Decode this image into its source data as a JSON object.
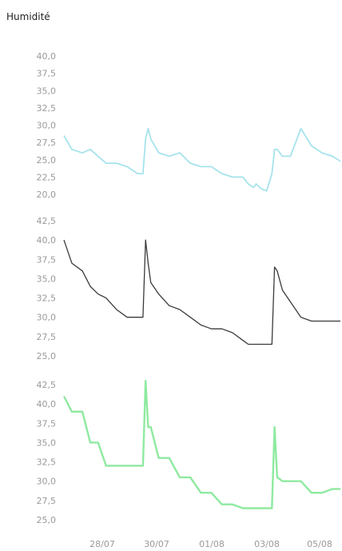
{
  "header": {
    "title": "Humidité"
  },
  "colors": {
    "series1": "#a6e3ec",
    "series2": "#3a3a3a",
    "series3": "#8eeaa0",
    "ticks": "#9a9a9a"
  },
  "chart_data": [
    {
      "type": "line",
      "ylim": [
        20,
        40
      ],
      "y_ticks": [
        "40,0",
        "37,5",
        "35,0",
        "32,5",
        "30,0",
        "27,5",
        "25,0",
        "22,5",
        "20,0"
      ],
      "grid": false,
      "x": [
        0,
        0.3,
        0.7,
        1,
        1.3,
        1.6,
        2,
        2.4,
        2.8,
        3,
        3.1,
        3.2,
        3.3,
        3.6,
        4,
        4.4,
        4.8,
        5.2,
        5.6,
        6,
        6.4,
        6.8,
        7,
        7.2,
        7.3,
        7.5,
        7.7,
        7.9,
        8,
        8.1,
        8.3,
        8.6,
        9,
        9.4,
        9.8,
        10.2,
        10.5
      ],
      "values": [
        28.5,
        26.5,
        26,
        26.5,
        25.5,
        24.5,
        24.5,
        24,
        23,
        23,
        28,
        29.5,
        28,
        26,
        25.5,
        26,
        24.5,
        24,
        24,
        23,
        22.5,
        22.5,
        21.5,
        21,
        21.5,
        20.8,
        20.5,
        23,
        26.5,
        26.5,
        25.5,
        25.5,
        29.5,
        27,
        26,
        25.5,
        24.8
      ]
    },
    {
      "type": "line",
      "ylim": [
        25,
        42.5
      ],
      "y_ticks": [
        "42,5",
        "40,0",
        "37,5",
        "35,0",
        "32,5",
        "30,0",
        "27,5",
        "25,0"
      ],
      "grid": false,
      "x": [
        0,
        0.3,
        0.7,
        1,
        1.3,
        1.6,
        2,
        2.4,
        2.8,
        3,
        3.1,
        3.2,
        3.3,
        3.6,
        4,
        4.4,
        4.8,
        5.2,
        5.6,
        6,
        6.4,
        6.8,
        7,
        7.2,
        7.3,
        7.5,
        7.7,
        7.9,
        8,
        8.1,
        8.3,
        8.6,
        9,
        9.4,
        9.8,
        10.2,
        10.5
      ],
      "values": [
        40,
        37,
        36,
        34,
        33,
        32.5,
        31,
        30,
        30,
        30,
        40,
        37,
        34.5,
        33,
        31.5,
        31,
        30,
        29,
        28.5,
        28.5,
        28,
        27,
        26.5,
        26.5,
        26.5,
        26.5,
        26.5,
        26.5,
        36.5,
        36,
        33.5,
        32,
        30,
        29.5,
        29.5,
        29.5,
        29.5
      ]
    },
    {
      "type": "line",
      "ylim": [
        25,
        42.5
      ],
      "y_ticks": [
        "42,5",
        "40,0",
        "37,5",
        "35,0",
        "32,5",
        "30,0",
        "27,5",
        "25,0"
      ],
      "grid": false,
      "x": [
        0,
        0.3,
        0.7,
        1,
        1.3,
        1.6,
        2,
        2.4,
        2.8,
        3,
        3.1,
        3.2,
        3.3,
        3.6,
        4,
        4.4,
        4.8,
        5.2,
        5.6,
        6,
        6.4,
        6.8,
        7,
        7.2,
        7.3,
        7.5,
        7.7,
        7.9,
        8,
        8.1,
        8.3,
        8.6,
        9,
        9.4,
        9.8,
        10.2,
        10.5
      ],
      "values": [
        41,
        39,
        39,
        35,
        35,
        32,
        32,
        32,
        32,
        32,
        43,
        37,
        37,
        33,
        33,
        30.5,
        30.5,
        28.5,
        28.5,
        27,
        27,
        26.5,
        26.5,
        26.5,
        26.5,
        26.5,
        26.5,
        26.5,
        37,
        30.5,
        30,
        30,
        30,
        28.5,
        28.5,
        29,
        29
      ],
      "x_ticks": [
        "28/07",
        "30/07",
        "01/08",
        "03/08",
        "05/08"
      ]
    }
  ]
}
